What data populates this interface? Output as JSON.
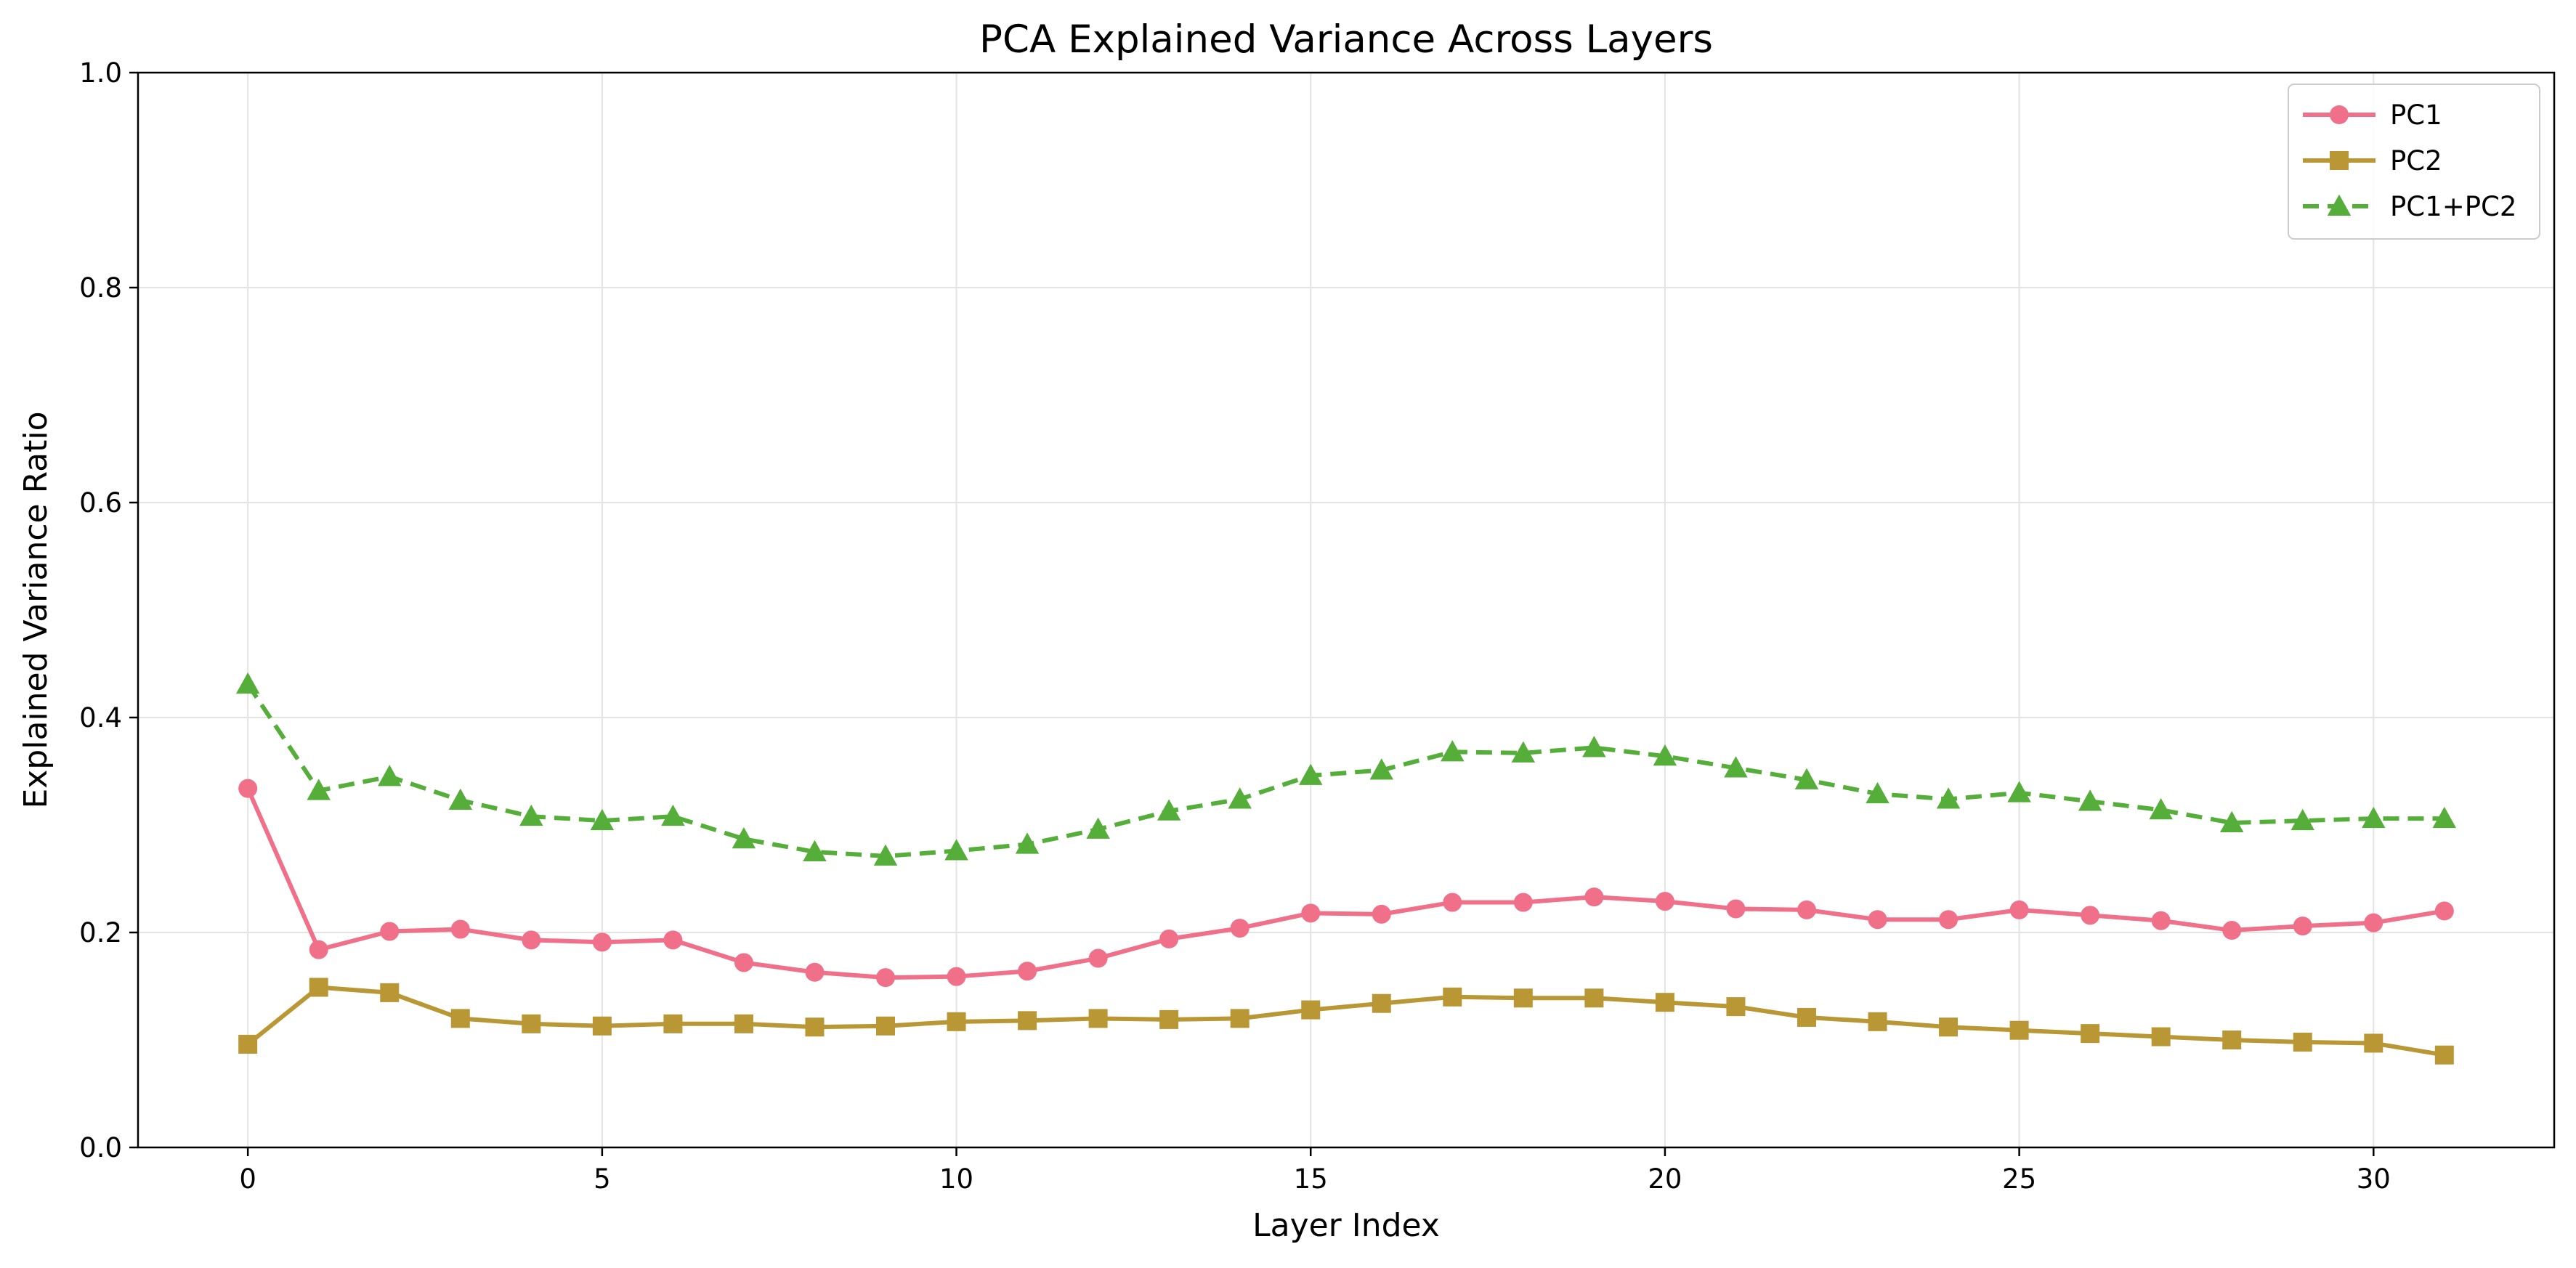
{
  "chart_data": {
    "type": "line",
    "title": "PCA Explained Variance Across Layers",
    "xlabel": "Layer Index",
    "ylabel": "Explained Variance Ratio",
    "xlim": [
      -1.55,
      32.55
    ],
    "ylim": [
      0.0,
      1.0
    ],
    "x_ticks": [
      0,
      5,
      10,
      15,
      20,
      25,
      30
    ],
    "y_ticks": [
      0.0,
      0.2,
      0.4,
      0.6,
      0.8,
      1.0
    ],
    "grid": true,
    "legend_position": "top-right",
    "x": [
      0,
      1,
      2,
      3,
      4,
      5,
      6,
      7,
      8,
      9,
      10,
      11,
      12,
      13,
      14,
      15,
      16,
      17,
      18,
      19,
      20,
      21,
      22,
      23,
      24,
      25,
      26,
      27,
      28,
      29,
      30,
      31
    ],
    "series": [
      {
        "name": "PC1",
        "color": "#f07089",
        "marker": "circle",
        "dash": "solid",
        "values": [
          0.334,
          0.184,
          0.201,
          0.203,
          0.193,
          0.191,
          0.193,
          0.172,
          0.163,
          0.158,
          0.159,
          0.164,
          0.176,
          0.194,
          0.204,
          0.218,
          0.217,
          0.228,
          0.228,
          0.233,
          0.229,
          0.222,
          0.221,
          0.212,
          0.212,
          0.221,
          0.216,
          0.211,
          0.202,
          0.206,
          0.209,
          0.22
        ]
      },
      {
        "name": "PC2",
        "color": "#b89734",
        "marker": "square",
        "dash": "solid",
        "values": [
          0.096,
          0.149,
          0.144,
          0.12,
          0.115,
          0.113,
          0.115,
          0.115,
          0.112,
          0.113,
          0.117,
          0.118,
          0.12,
          0.119,
          0.12,
          0.128,
          0.134,
          0.14,
          0.139,
          0.139,
          0.135,
          0.131,
          0.121,
          0.117,
          0.112,
          0.109,
          0.106,
          0.103,
          0.1,
          0.098,
          0.097,
          0.086
        ]
      },
      {
        "name": "PC1+PC2",
        "color": "#55ae3a",
        "marker": "triangle",
        "dash": "dashed",
        "values": [
          0.431,
          0.332,
          0.345,
          0.323,
          0.308,
          0.304,
          0.308,
          0.287,
          0.275,
          0.271,
          0.276,
          0.282,
          0.296,
          0.313,
          0.324,
          0.346,
          0.351,
          0.368,
          0.367,
          0.372,
          0.364,
          0.353,
          0.342,
          0.329,
          0.324,
          0.33,
          0.322,
          0.314,
          0.302,
          0.304,
          0.306,
          0.306
        ]
      }
    ]
  }
}
